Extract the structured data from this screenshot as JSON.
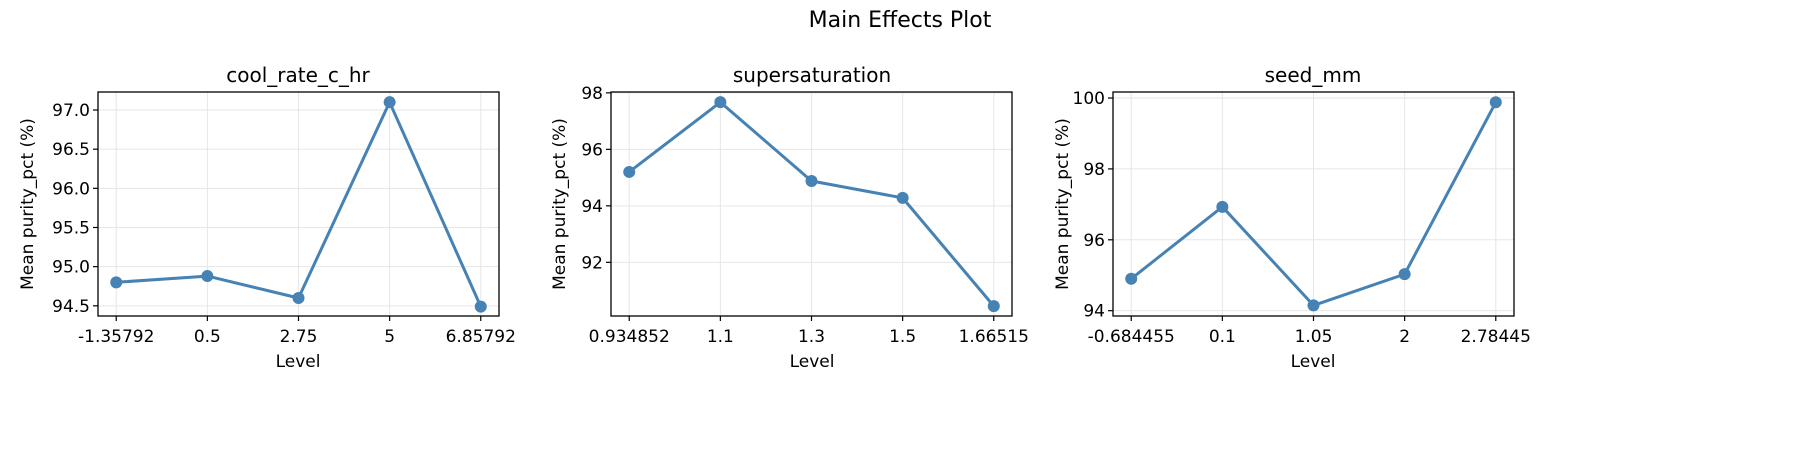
{
  "chart_data": {
    "type": "line",
    "title": "Main Effects Plot",
    "color": "#4682b4",
    "panels": [
      {
        "title": "cool_rate_c_hr",
        "xlabel": "Level",
        "ylabel": "Mean purity_pct (%)",
        "categories": [
          "-1.35792",
          "0.5",
          "2.75",
          "5",
          "6.85792"
        ],
        "values": [
          94.8,
          94.88,
          94.6,
          97.1,
          94.49
        ],
        "yticks": [
          94.5,
          95.0,
          95.5,
          96.0,
          96.5,
          97.0
        ],
        "ytick_labels": [
          "94.5",
          "95.0",
          "95.5",
          "96.0",
          "96.5",
          "97.0"
        ],
        "ylim": [
          94.37,
          97.23
        ],
        "grid": true
      },
      {
        "title": "supersaturation",
        "xlabel": "Level",
        "ylabel": "Mean purity_pct (%)",
        "categories": [
          "0.934852",
          "1.1",
          "1.3",
          "1.5",
          "1.66515"
        ],
        "values": [
          95.2,
          97.67,
          94.88,
          94.28,
          90.45
        ],
        "yticks": [
          92,
          94,
          96,
          98
        ],
        "ytick_labels": [
          "92",
          "94",
          "96",
          "98"
        ],
        "ylim": [
          90.1,
          98.03
        ],
        "grid": true
      },
      {
        "title": "seed_mm",
        "xlabel": "Level",
        "ylabel": "Mean purity_pct (%)",
        "categories": [
          "-0.684455",
          "0.1",
          "1.05",
          "2",
          "2.78445"
        ],
        "values": [
          94.9,
          96.93,
          94.15,
          95.03,
          99.88
        ],
        "yticks": [
          94,
          96,
          98,
          100
        ],
        "ytick_labels": [
          "94",
          "96",
          "98",
          "100"
        ],
        "ylim": [
          93.85,
          100.17
        ],
        "grid": true
      }
    ],
    "legend": null
  }
}
